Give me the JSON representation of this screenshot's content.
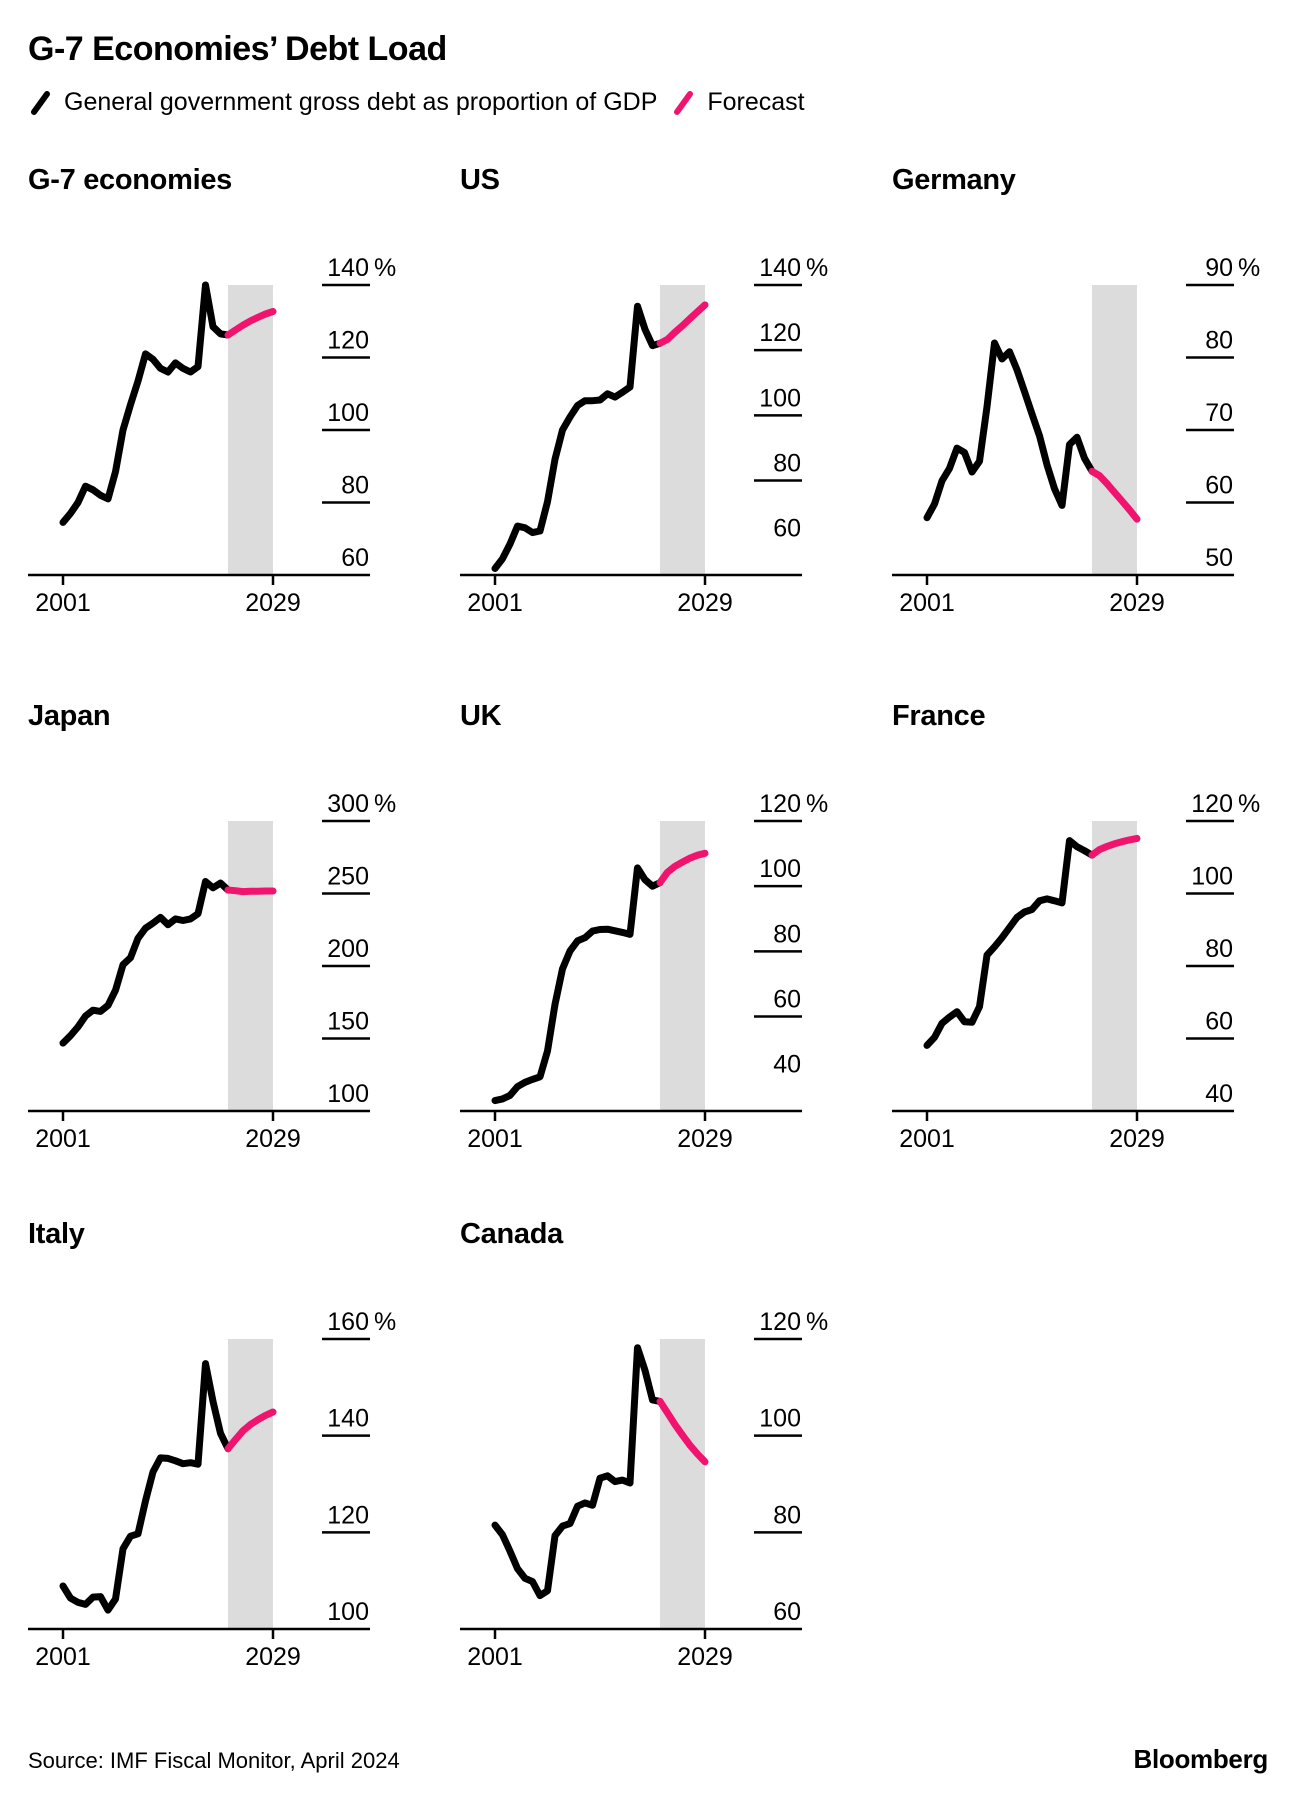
{
  "header": {
    "title": "G-7 Economies’ Debt Load",
    "legend": [
      {
        "label": "General government gross debt as proportion of GDP",
        "series": "actual"
      },
      {
        "label": "Forecast",
        "series": "forecast"
      }
    ]
  },
  "footer": {
    "source": "Source: IMF Fiscal Monitor, April 2024",
    "brand": "Bloomberg"
  },
  "colors": {
    "actual": "#000000",
    "forecast": "#f0146e",
    "forecast_band": "#dcdcdc",
    "axis": "#000000"
  },
  "x_axis": {
    "start_year": 2001,
    "end_year": 2029,
    "start_label": "2001",
    "end_label": "2029",
    "forecast_start_year": 2023,
    "forecast_band_years": [
      2023,
      2029
    ]
  },
  "chart_data": [
    {
      "type": "line",
      "title": "G-7 economies",
      "unit": "%",
      "ylim": [
        60,
        140
      ],
      "yticks": [
        140,
        120,
        100,
        80,
        60
      ],
      "actual": {
        "from_year": 2001,
        "values": [
          74.5,
          77,
          80,
          84.5,
          83.5,
          82,
          81,
          88.5,
          100,
          107,
          113.5,
          121,
          119.5,
          117,
          116,
          118.5,
          117,
          116,
          117.5,
          140,
          128.5,
          126.5,
          126.2
        ]
      },
      "forecast": {
        "from_year": 2023,
        "values": [
          126.2,
          127.6,
          128.9,
          130.1,
          131.1,
          132,
          132.7
        ]
      }
    },
    {
      "type": "line",
      "title": "US",
      "unit": "%",
      "ylim": [
        51,
        140
      ],
      "yticks": [
        140,
        120,
        100,
        80,
        60
      ],
      "actual": {
        "from_year": 2001,
        "values": [
          53,
          56,
          60.5,
          66,
          65.5,
          64,
          64.5,
          73.5,
          86.5,
          95.5,
          99.5,
          103,
          104.5,
          104.5,
          104.7,
          106.6,
          105.6,
          107.1,
          108.7,
          133.5,
          126.4,
          121.4,
          122.1
        ]
      },
      "forecast": {
        "from_year": 2023,
        "values": [
          122.1,
          123.3,
          125.5,
          127.5,
          129.7,
          131.8,
          133.9
        ]
      }
    },
    {
      "type": "line",
      "title": "Germany",
      "unit": "%",
      "ylim": [
        50,
        90
      ],
      "yticks": [
        90,
        80,
        70,
        60,
        50
      ],
      "actual": {
        "from_year": 2001,
        "values": [
          57.9,
          59.8,
          63,
          64.7,
          67.5,
          66.9,
          64.2,
          65.7,
          73.2,
          82,
          79.8,
          80.8,
          78.3,
          75.3,
          72.2,
          69.2,
          65.2,
          61.9,
          59.6,
          68,
          69,
          66.1,
          64.3
        ]
      },
      "forecast": {
        "from_year": 2023,
        "values": [
          64.3,
          63.7,
          62.6,
          61.4,
          60.2,
          59,
          57.7
        ]
      }
    },
    {
      "type": "line",
      "title": "Japan",
      "unit": "%",
      "ylim": [
        100,
        300
      ],
      "yticks": [
        300,
        250,
        200,
        150,
        100
      ],
      "actual": {
        "from_year": 2001,
        "values": [
          146.8,
          152,
          158,
          165.5,
          169.5,
          168.7,
          172.8,
          183.3,
          200.9,
          205.7,
          219.1,
          226.1,
          229.6,
          233.5,
          228.4,
          232.5,
          231.4,
          232.5,
          236.1,
          258.3,
          253.9,
          257.2,
          252.4
        ]
      },
      "forecast": {
        "from_year": 2023,
        "values": [
          252.4,
          251.9,
          251.3,
          251.5,
          251.6,
          251.7,
          251.7
        ]
      }
    },
    {
      "type": "line",
      "title": "UK",
      "unit": "%",
      "ylim": [
        31,
        120
      ],
      "yticks": [
        120,
        100,
        80,
        60,
        40
      ],
      "actual": {
        "from_year": 2001,
        "values": [
          34.2,
          34.7,
          35.8,
          38.5,
          39.8,
          40.7,
          41.5,
          49.4,
          63.7,
          74.6,
          80.1,
          83.2,
          84.2,
          86.2,
          86.7,
          86.8,
          86.3,
          85.8,
          85.2,
          105.6,
          102,
          100,
          101.1
        ]
      },
      "forecast": {
        "from_year": 2023,
        "values": [
          101.1,
          104.3,
          106.1,
          107.4,
          108.6,
          109.5,
          110.1
        ]
      }
    },
    {
      "type": "line",
      "title": "France",
      "unit": "%",
      "ylim": [
        40,
        120
      ],
      "yticks": [
        120,
        100,
        80,
        60,
        40
      ],
      "actual": {
        "from_year": 2001,
        "values": [
          58.1,
          60.3,
          64.2,
          65.9,
          67.4,
          64.6,
          64.5,
          68.8,
          83,
          85.3,
          87.8,
          90.6,
          93.4,
          94.9,
          95.6,
          98,
          98.5,
          98,
          97.4,
          114.6,
          112.9,
          111.8,
          110.6
        ]
      },
      "forecast": {
        "from_year": 2023,
        "values": [
          110.6,
          112.1,
          113,
          113.7,
          114.3,
          114.8,
          115.2
        ]
      }
    },
    {
      "type": "line",
      "title": "Italy",
      "unit": "%",
      "ylim": [
        100,
        160
      ],
      "yticks": [
        160,
        140,
        120,
        100
      ],
      "actual": {
        "from_year": 2001,
        "values": [
          108.9,
          106.4,
          105.5,
          105.1,
          106.6,
          106.7,
          103.9,
          106.2,
          116.6,
          119.2,
          119.7,
          126.5,
          132.5,
          135.4,
          135.3,
          134.8,
          134.2,
          134.4,
          134.1,
          154.9,
          147.1,
          140.5,
          137.3
        ]
      },
      "forecast": {
        "from_year": 2023,
        "values": [
          137.3,
          139.2,
          141,
          142.3,
          143.3,
          144.2,
          144.9
        ]
      }
    },
    {
      "type": "line",
      "title": "Canada",
      "unit": "%",
      "ylim": [
        60,
        120
      ],
      "yticks": [
        120,
        100,
        80,
        60
      ],
      "actual": {
        "from_year": 2001,
        "values": [
          81.5,
          79.5,
          76.1,
          72.5,
          70.5,
          69.8,
          66.9,
          67.9,
          79.3,
          81.3,
          81.8,
          85.4,
          86.1,
          85.6,
          91.2,
          91.7,
          90.5,
          90.8,
          90.2,
          118.2,
          113.5,
          107.4,
          107.1
        ]
      },
      "forecast": {
        "from_year": 2023,
        "values": [
          107.1,
          104.7,
          102.3,
          100.1,
          98,
          96.2,
          94.6
        ]
      }
    }
  ]
}
